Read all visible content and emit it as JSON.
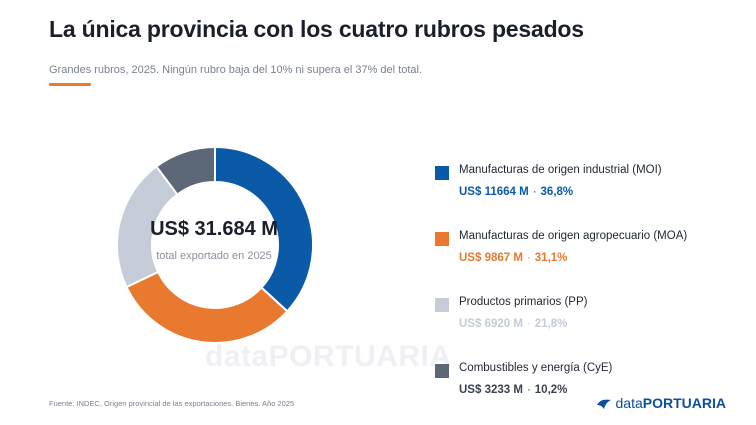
{
  "header": {
    "title": "La única provincia con los cuatro rubros pesados",
    "subtitle": "Grandes rubros, 2025. Ningún rubro baja del 10% ni supera el 37% del total."
  },
  "chart_data": {
    "type": "pie",
    "center_value": "US$ 31.684 M",
    "center_label": "total exportado en 2025",
    "series": [
      {
        "name": "Manufacturas de origen industrial (MOI)",
        "value": 11664,
        "value_label": "US$ 11664 M",
        "percent": 36.8,
        "percent_label": "36,8%",
        "color": "#0b5aa8",
        "text_color": "#0b5aa8"
      },
      {
        "name": "Manufacturas de origen agropecuario (MOA)",
        "value": 9867,
        "value_label": "US$ 9867 M",
        "percent": 31.1,
        "percent_label": "31,1%",
        "color": "#e8792e",
        "text_color": "#e8792e"
      },
      {
        "name": "Productos primarios (PP)",
        "value": 6920,
        "value_label": "US$ 6920 M",
        "percent": 21.8,
        "percent_label": "21,8%",
        "color": "#c5ccd7",
        "text_color": "#c5ccd7"
      },
      {
        "name": "Combustibles y energía (CyE)",
        "value": 3233,
        "value_label": "US$ 3233 M",
        "percent": 10.2,
        "percent_label": "10,2%",
        "color": "#5c6878",
        "text_color": "#3a4250"
      }
    ]
  },
  "footer": {
    "source": "Fuente: INDEC, Origen provincial de las exportaciones. Bienes. Año 2025"
  },
  "brand": {
    "prefix": "data",
    "name": "PORTUARIA",
    "watermark": "dataPORTUARIA",
    "color": "#0b4fa0",
    "icon": "wave-logo-icon"
  }
}
